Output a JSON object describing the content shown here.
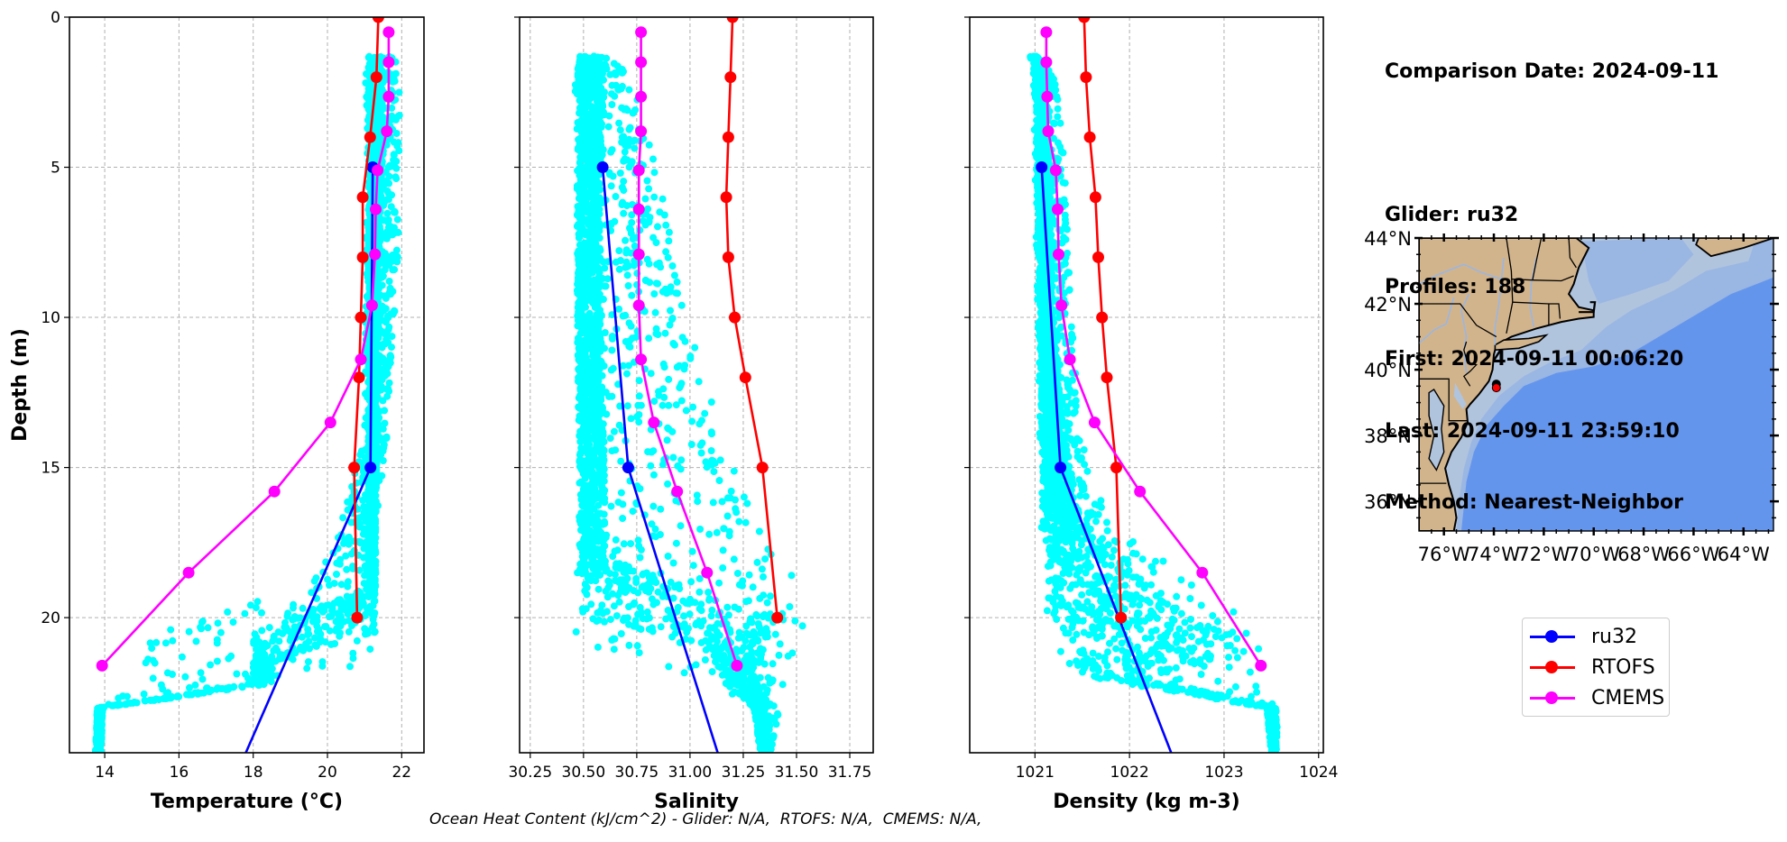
{
  "info": {
    "comparison_date": "Comparison Date: 2024-09-11",
    "glider": "Glider: ru32",
    "profiles": "Profiles: 188",
    "first": "First: 2024-09-11 00:06:20",
    "last": "Last: 2024-09-11 23:59:10",
    "method": "Method: Nearest-Neighbor"
  },
  "footer": "Ocean Heat Content (kJ/cm^2) - Glider: N/A,  RTOFS: N/A,  CMEMS: N/A,",
  "legend": [
    {
      "name": "ru32",
      "color": "#0000ff"
    },
    {
      "name": "RTOFS",
      "color": "#ff0000"
    },
    {
      "name": "CMEMS",
      "color": "#ff00ff"
    }
  ],
  "colors": {
    "glider_scatter": "#00ffff",
    "ru32": "#0000ff",
    "rtofs": "#ff0000",
    "cmems": "#ff00ff",
    "land": "#d2b48c",
    "shelf": "#b0c4de",
    "slope": "#9ab6e2",
    "deep": "#6495ed"
  },
  "chart_data": [
    {
      "type": "line",
      "id": "temperature",
      "xlabel": "Temperature (°C)",
      "ylabel": "Depth (m)",
      "xlim": [
        13.05,
        22.6
      ],
      "ylim": [
        24.5,
        0
      ],
      "xticks": [
        14,
        16,
        18,
        20,
        22
      ],
      "xtick_labels": [
        "14",
        "16",
        "18",
        "20",
        "22"
      ],
      "yticks": [
        0,
        5,
        10,
        15,
        20
      ],
      "ytick_labels": [
        "0",
        "5",
        "10",
        "15",
        "20"
      ],
      "grid": true,
      "series": [
        {
          "name": "ru32",
          "depth": [
            5,
            15,
            24.5
          ],
          "values": [
            21.22,
            21.16,
            17.8
          ],
          "markers": [
            true,
            true,
            false
          ]
        },
        {
          "name": "RTOFS",
          "depth": [
            0,
            2,
            4,
            6,
            8,
            10,
            12,
            15,
            20
          ],
          "values": [
            21.37,
            21.32,
            21.15,
            20.95,
            20.95,
            20.9,
            20.85,
            20.72,
            20.8
          ]
        },
        {
          "name": "CMEMS",
          "depth": [
            0.5,
            1.5,
            2.65,
            3.8,
            5.1,
            6.4,
            7.9,
            9.6,
            11.4,
            13.5,
            15.8,
            18.5,
            21.6
          ],
          "values": [
            21.65,
            21.65,
            21.65,
            21.6,
            21.35,
            21.3,
            21.28,
            21.2,
            20.9,
            20.08,
            18.57,
            16.26,
            13.93
          ]
        }
      ],
      "glider_envelope": {
        "depth": [
          1.3,
          3,
          8,
          14,
          17,
          19,
          20.5,
          21.5,
          22.2,
          23,
          24.5
        ],
        "min": [
          21.0,
          21.05,
          21.0,
          21.0,
          20.3,
          19.5,
          15.0,
          14.6,
          15.2,
          13.8,
          13.75
        ],
        "max": [
          22.0,
          21.95,
          21.9,
          21.6,
          21.3,
          21.3,
          21.3,
          21.3,
          18.4,
          13.95,
          13.9
        ],
        "core_min": [
          21.1,
          21.1,
          21.1,
          21.1,
          21.1,
          21.1,
          18.0,
          18.0,
          18.0,
          13.8,
          13.75
        ],
        "core_max": [
          21.5,
          21.5,
          21.4,
          21.35,
          21.3,
          21.3,
          21.3,
          18.6,
          18.5,
          13.95,
          13.9
        ]
      }
    },
    {
      "type": "line",
      "id": "salinity",
      "xlabel": "Salinity",
      "ylabel": "",
      "xlim": [
        30.2,
        31.86
      ],
      "ylim": [
        24.5,
        0
      ],
      "xticks": [
        30.25,
        30.5,
        30.75,
        31.0,
        31.25,
        31.5,
        31.75
      ],
      "xtick_labels": [
        "30.25",
        "30.50",
        "30.75",
        "31.00",
        "31.25",
        "31.50",
        "31.75"
      ],
      "yticks": [
        0,
        5,
        10,
        15,
        20
      ],
      "ytick_labels": [
        "",
        "",
        "",
        "",
        ""
      ],
      "grid": true,
      "series": [
        {
          "name": "ru32",
          "depth": [
            5,
            15,
            24.5
          ],
          "values": [
            30.59,
            30.71,
            31.13
          ],
          "markers": [
            true,
            true,
            false
          ]
        },
        {
          "name": "RTOFS",
          "depth": [
            0,
            2,
            4,
            6,
            8,
            10,
            12,
            15,
            20
          ],
          "values": [
            31.2,
            31.19,
            31.18,
            31.17,
            31.18,
            31.21,
            31.26,
            31.34,
            31.41
          ]
        },
        {
          "name": "CMEMS",
          "depth": [
            0.5,
            1.5,
            2.65,
            3.8,
            5.1,
            6.4,
            7.9,
            9.6,
            11.4,
            13.5,
            15.8,
            18.5,
            21.6
          ],
          "values": [
            30.77,
            30.77,
            30.77,
            30.77,
            30.76,
            30.76,
            30.76,
            30.76,
            30.77,
            30.83,
            30.94,
            31.08,
            31.22
          ]
        }
      ],
      "glider_envelope": {
        "depth": [
          1.3,
          2,
          5,
          10,
          15,
          18,
          20,
          21,
          22,
          23,
          24.5
        ],
        "min": [
          30.5,
          30.46,
          30.47,
          30.47,
          30.47,
          30.46,
          30.44,
          30.48,
          31.05,
          31.3,
          31.33
        ],
        "max": [
          30.62,
          30.72,
          30.85,
          30.98,
          31.2,
          31.45,
          31.6,
          31.5,
          31.45,
          31.42,
          31.38
        ],
        "core_min": [
          30.47,
          30.47,
          30.47,
          30.47,
          30.48,
          30.48,
          30.5,
          31.1,
          31.15,
          31.3,
          31.33
        ],
        "core_max": [
          30.58,
          30.6,
          30.58,
          30.58,
          30.6,
          30.6,
          31.4,
          31.35,
          31.3,
          31.38,
          31.37
        ]
      }
    },
    {
      "type": "line",
      "id": "density",
      "xlabel": "Density (kg m-3)",
      "ylabel": "",
      "xlim": [
        1020.31,
        1024.05
      ],
      "ylim": [
        24.5,
        0
      ],
      "xticks": [
        1021,
        1022,
        1023,
        1024
      ],
      "xtick_labels": [
        "1021",
        "1022",
        "1023",
        "1024"
      ],
      "yticks": [
        0,
        5,
        10,
        15,
        20
      ],
      "ytick_labels": [
        "",
        "",
        "",
        "",
        ""
      ],
      "grid": true,
      "series": [
        {
          "name": "ru32",
          "depth": [
            5,
            15,
            24.5
          ],
          "values": [
            1021.07,
            1021.27,
            1022.44
          ],
          "markers": [
            true,
            true,
            false
          ]
        },
        {
          "name": "RTOFS",
          "depth": [
            0,
            2,
            4,
            6,
            8,
            10,
            12,
            15,
            20
          ],
          "values": [
            1021.52,
            1021.54,
            1021.58,
            1021.64,
            1021.67,
            1021.71,
            1021.76,
            1021.86,
            1021.91
          ]
        },
        {
          "name": "CMEMS",
          "depth": [
            0.5,
            1.5,
            2.65,
            3.8,
            5.1,
            6.4,
            7.9,
            9.6,
            11.4,
            13.5,
            15.8,
            18.5,
            21.6
          ],
          "values": [
            1021.12,
            1021.12,
            1021.13,
            1021.14,
            1021.22,
            1021.24,
            1021.25,
            1021.28,
            1021.37,
            1021.63,
            1022.11,
            1022.77,
            1023.39
          ]
        }
      ],
      "glider_envelope": {
        "depth": [
          1.3,
          2,
          5,
          10,
          14,
          17,
          19.5,
          21,
          22,
          23,
          24.5
        ],
        "min": [
          1020.95,
          1020.98,
          1021.0,
          1021.03,
          1021.05,
          1021.07,
          1021.1,
          1021.2,
          1021.5,
          1023.45,
          1023.5
        ],
        "max": [
          1021.05,
          1021.22,
          1021.32,
          1021.38,
          1021.5,
          1021.8,
          1023.1,
          1023.4,
          1023.3,
          1023.55,
          1023.58
        ],
        "core_min": [
          1020.98,
          1021.0,
          1021.02,
          1021.05,
          1021.07,
          1021.1,
          1021.15,
          1021.3,
          1021.6,
          1023.45,
          1023.5
        ],
        "core_max": [
          1021.05,
          1021.12,
          1021.15,
          1021.2,
          1021.3,
          1021.5,
          1022.4,
          1023.3,
          1022.2,
          1023.55,
          1023.55
        ]
      }
    },
    {
      "type": "map",
      "id": "glider-location",
      "lon_range": [
        -77,
        -62.8
      ],
      "lat_range": [
        35.1,
        44
      ],
      "xtick_labels": [
        "76°W",
        "74°W",
        "72°W",
        "70°W",
        "68°W",
        "66°W",
        "64°W"
      ],
      "xticks": [
        -76,
        -74,
        -72,
        -70,
        -68,
        -66,
        -64
      ],
      "ytick_labels": [
        "44°N",
        "42°N",
        "40°N",
        "38°N",
        "36°N"
      ],
      "yticks": [
        44,
        42,
        40,
        38,
        36
      ],
      "glider_position": {
        "lon": -73.9,
        "lat": 39.45
      }
    }
  ]
}
